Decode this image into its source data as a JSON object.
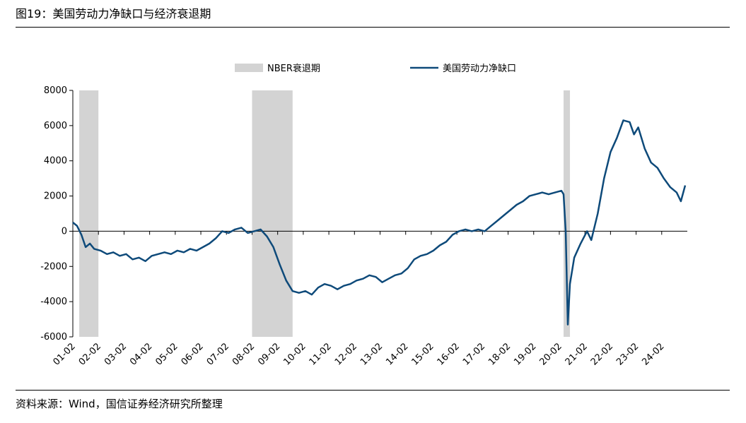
{
  "header": {
    "title": "图19：美国劳动力净缺口与经济衰退期"
  },
  "footer": {
    "source": "资料来源：Wind，国信证券经济研究所整理"
  },
  "colors": {
    "line": "#0E4A7A",
    "recession": "#D3D3D3",
    "axis": "#000000"
  },
  "chart_data": {
    "type": "line",
    "title": "",
    "xlabel": "",
    "ylabel": "",
    "ylim": [
      -6000,
      8000
    ],
    "yticks": [
      8000,
      6000,
      4000,
      2000,
      0,
      -2000,
      -4000,
      -6000
    ],
    "xticks": [
      "01-02",
      "02-02",
      "03-02",
      "04-02",
      "05-02",
      "06-02",
      "07-02",
      "08-02",
      "09-02",
      "10-02",
      "11-02",
      "12-02",
      "13-02",
      "14-02",
      "15-02",
      "16-02",
      "17-02",
      "18-02",
      "19-02",
      "20-02",
      "21-02",
      "22-02",
      "23-02",
      "24-02"
    ],
    "legend_position": "top",
    "recession_periods": [
      {
        "name": "NBER衰退期",
        "start": "2001-03",
        "end": "2001-11"
      },
      {
        "name": "NBER衰退期",
        "start": "2007-12",
        "end": "2009-06"
      },
      {
        "name": "NBER衰退期",
        "start": "2020-02",
        "end": "2020-04"
      }
    ],
    "legend": {
      "recession_label": "NBER衰退期",
      "series_label": "美国劳动力净缺口"
    },
    "series": [
      {
        "name": "美国劳动力净缺口",
        "points": [
          [
            "2000-12",
            500
          ],
          [
            "2001-02",
            300
          ],
          [
            "2001-04",
            -200
          ],
          [
            "2001-06",
            -900
          ],
          [
            "2001-08",
            -700
          ],
          [
            "2001-10",
            -1000
          ],
          [
            "2002-01",
            -1100
          ],
          [
            "2002-04",
            -1300
          ],
          [
            "2002-07",
            -1200
          ],
          [
            "2002-10",
            -1400
          ],
          [
            "2003-01",
            -1300
          ],
          [
            "2003-04",
            -1600
          ],
          [
            "2003-07",
            -1500
          ],
          [
            "2003-10",
            -1700
          ],
          [
            "2004-01",
            -1400
          ],
          [
            "2004-04",
            -1300
          ],
          [
            "2004-07",
            -1200
          ],
          [
            "2004-10",
            -1300
          ],
          [
            "2005-01",
            -1100
          ],
          [
            "2005-04",
            -1200
          ],
          [
            "2005-07",
            -1000
          ],
          [
            "2005-10",
            -1100
          ],
          [
            "2006-01",
            -900
          ],
          [
            "2006-04",
            -700
          ],
          [
            "2006-07",
            -400
          ],
          [
            "2006-10",
            0
          ],
          [
            "2007-01",
            -100
          ],
          [
            "2007-04",
            100
          ],
          [
            "2007-07",
            200
          ],
          [
            "2007-10",
            -100
          ],
          [
            "2008-01",
            0
          ],
          [
            "2008-04",
            100
          ],
          [
            "2008-07",
            -300
          ],
          [
            "2008-10",
            -900
          ],
          [
            "2009-01",
            -1900
          ],
          [
            "2009-04",
            -2800
          ],
          [
            "2009-07",
            -3400
          ],
          [
            "2009-10",
            -3500
          ],
          [
            "2010-01",
            -3400
          ],
          [
            "2010-04",
            -3600
          ],
          [
            "2010-07",
            -3200
          ],
          [
            "2010-10",
            -3000
          ],
          [
            "2011-01",
            -3100
          ],
          [
            "2011-04",
            -3300
          ],
          [
            "2011-07",
            -3100
          ],
          [
            "2011-10",
            -3000
          ],
          [
            "2012-01",
            -2800
          ],
          [
            "2012-04",
            -2700
          ],
          [
            "2012-07",
            -2500
          ],
          [
            "2012-10",
            -2600
          ],
          [
            "2013-01",
            -2900
          ],
          [
            "2013-04",
            -2700
          ],
          [
            "2013-07",
            -2500
          ],
          [
            "2013-10",
            -2400
          ],
          [
            "2014-01",
            -2100
          ],
          [
            "2014-04",
            -1600
          ],
          [
            "2014-07",
            -1400
          ],
          [
            "2014-10",
            -1300
          ],
          [
            "2015-01",
            -1100
          ],
          [
            "2015-04",
            -800
          ],
          [
            "2015-07",
            -600
          ],
          [
            "2015-10",
            -200
          ],
          [
            "2016-01",
            0
          ],
          [
            "2016-04",
            100
          ],
          [
            "2016-07",
            0
          ],
          [
            "2016-10",
            100
          ],
          [
            "2017-01",
            0
          ],
          [
            "2017-04",
            300
          ],
          [
            "2017-07",
            600
          ],
          [
            "2017-10",
            900
          ],
          [
            "2018-01",
            1200
          ],
          [
            "2018-04",
            1500
          ],
          [
            "2018-07",
            1700
          ],
          [
            "2018-10",
            2000
          ],
          [
            "2019-01",
            2100
          ],
          [
            "2019-04",
            2200
          ],
          [
            "2019-07",
            2100
          ],
          [
            "2019-10",
            2200
          ],
          [
            "2020-01",
            2300
          ],
          [
            "2020-02",
            2100
          ],
          [
            "2020-03",
            0
          ],
          [
            "2020-04",
            -5300
          ],
          [
            "2020-05",
            -3000
          ],
          [
            "2020-07",
            -1500
          ],
          [
            "2020-10",
            -700
          ],
          [
            "2021-01",
            0
          ],
          [
            "2021-03",
            -500
          ],
          [
            "2021-06",
            1000
          ],
          [
            "2021-09",
            3000
          ],
          [
            "2021-12",
            4500
          ],
          [
            "2022-03",
            5300
          ],
          [
            "2022-06",
            6300
          ],
          [
            "2022-09",
            6200
          ],
          [
            "2022-11",
            5500
          ],
          [
            "2023-01",
            5900
          ],
          [
            "2023-04",
            4700
          ],
          [
            "2023-07",
            3900
          ],
          [
            "2023-10",
            3600
          ],
          [
            "2024-01",
            3000
          ],
          [
            "2024-04",
            2500
          ],
          [
            "2024-07",
            2200
          ],
          [
            "2024-09",
            1700
          ],
          [
            "2024-11",
            2600
          ]
        ]
      }
    ]
  }
}
